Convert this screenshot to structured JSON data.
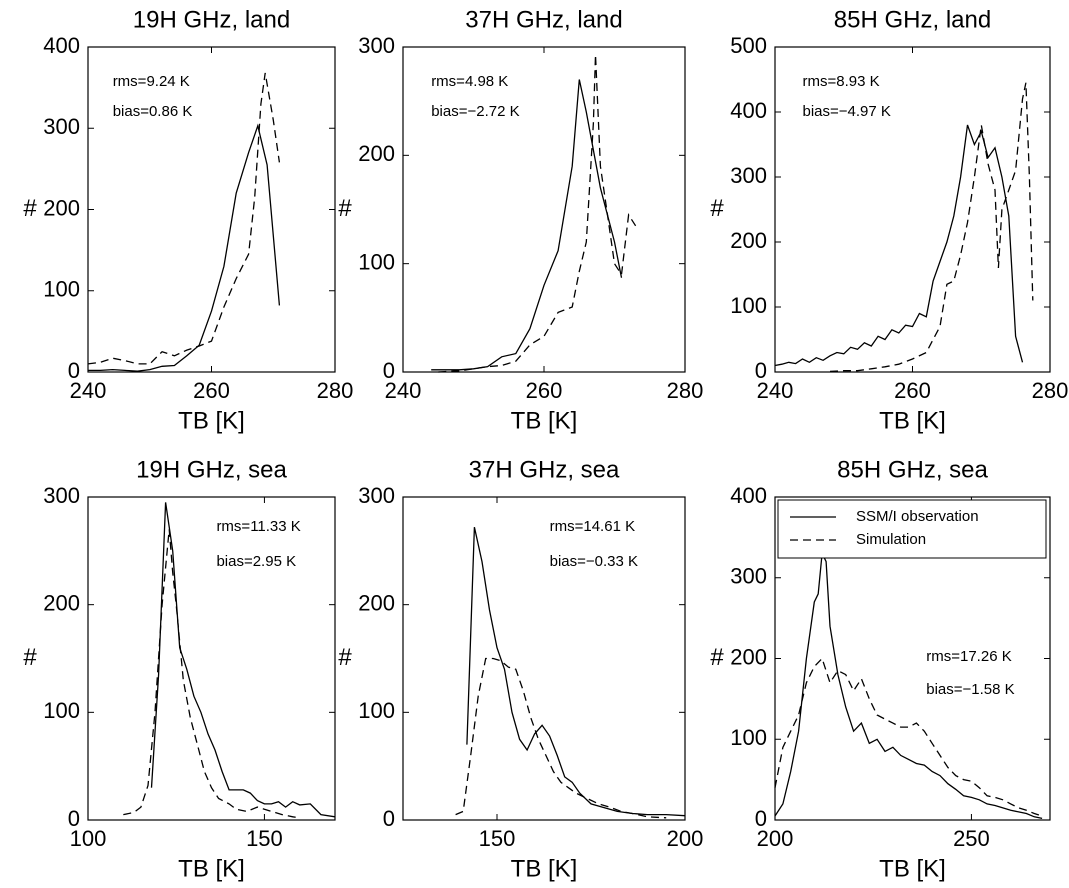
{
  "chart_data": [
    {
      "type": "line",
      "title": "19H GHz, land",
      "xlabel": "TB [K]",
      "ylabel": "#",
      "annotations": [
        "rms=9.24 K",
        "bias=0.86 K"
      ],
      "xlim": [
        240,
        280
      ],
      "xticks": [
        240,
        260,
        280
      ],
      "ylim": [
        0,
        400
      ],
      "yticks": [
        0,
        100,
        200,
        300,
        400
      ],
      "series": [
        {
          "color": "#000000",
          "style": "solid",
          "x": [
            240,
            242,
            244,
            246,
            248,
            250,
            252,
            254,
            256,
            258,
            260,
            262,
            264,
            266,
            267.5,
            269,
            271
          ],
          "values": [
            2,
            2,
            3,
            2,
            1,
            3,
            7,
            8,
            20,
            33,
            75,
            130,
            220,
            270,
            303,
            255,
            82
          ]
        },
        {
          "color": "#000000",
          "style": "dashed",
          "x": [
            240,
            242,
            244,
            246,
            248,
            250,
            252,
            254,
            256,
            258,
            260,
            262,
            264,
            266,
            267,
            268,
            268.7,
            270,
            271
          ],
          "values": [
            10,
            12,
            17,
            14,
            10,
            10,
            25,
            20,
            27,
            32,
            38,
            80,
            115,
            145,
            215,
            330,
            368,
            310,
            258
          ]
        }
      ]
    },
    {
      "type": "line",
      "title": "37H GHz, land",
      "xlabel": "TB [K]",
      "ylabel": "#",
      "annotations": [
        "rms=4.98 K",
        "bias=−2.72 K"
      ],
      "xlim": [
        240,
        280
      ],
      "xticks": [
        240,
        260,
        280
      ],
      "ylim": [
        0,
        300
      ],
      "yticks": [
        0,
        100,
        200,
        300
      ],
      "series": [
        {
          "color": "#000000",
          "style": "solid",
          "x": [
            244,
            246,
            248,
            250,
            252,
            254,
            256,
            258,
            260,
            262,
            264,
            265,
            266,
            268,
            270,
            271
          ],
          "values": [
            2,
            2,
            2,
            3,
            5,
            14,
            17,
            40,
            80,
            112,
            190,
            270,
            240,
            170,
            120,
            87
          ]
        },
        {
          "color": "#000000",
          "style": "dashed",
          "x": [
            245,
            248,
            250,
            252,
            254,
            256,
            258,
            260,
            262,
            264,
            265,
            266,
            267,
            267.3,
            268,
            269,
            270,
            271,
            272,
            273
          ],
          "values": [
            0,
            1,
            3,
            5,
            6,
            10,
            25,
            33,
            55,
            60,
            93,
            120,
            230,
            293,
            190,
            145,
            100,
            90,
            145,
            135
          ]
        }
      ]
    },
    {
      "type": "line",
      "title": "85H GHz, land",
      "xlabel": "TB [K]",
      "ylabel": "#",
      "annotations": [
        "rms=8.93 K",
        "bias=−4.97 K"
      ],
      "xlim": [
        240,
        280
      ],
      "xticks": [
        240,
        260,
        280
      ],
      "ylim": [
        0,
        500
      ],
      "yticks": [
        0,
        100,
        200,
        300,
        400,
        500
      ],
      "series": [
        {
          "color": "#000000",
          "style": "solid",
          "x": [
            240,
            241,
            242,
            243,
            244,
            245,
            246,
            247,
            248,
            249,
            250,
            251,
            252,
            253,
            254,
            255,
            256,
            257,
            258,
            259,
            260,
            261,
            262,
            263,
            264,
            265,
            266,
            267,
            268,
            269,
            270,
            271,
            272,
            273,
            274,
            275,
            276
          ],
          "values": [
            10,
            12,
            15,
            13,
            20,
            15,
            22,
            18,
            25,
            30,
            28,
            38,
            35,
            45,
            40,
            55,
            50,
            65,
            60,
            72,
            70,
            90,
            85,
            140,
            170,
            200,
            240,
            300,
            380,
            350,
            370,
            330,
            345,
            300,
            240,
            55,
            15
          ]
        },
        {
          "color": "#000000",
          "style": "dashed",
          "x": [
            248,
            250,
            252,
            254,
            256,
            258,
            260,
            262,
            263,
            264,
            265,
            266,
            267,
            268,
            269,
            270,
            271,
            272,
            272.5,
            273,
            274,
            275,
            276,
            276.5,
            277,
            277.5
          ],
          "values": [
            1,
            2,
            2,
            5,
            8,
            12,
            20,
            30,
            50,
            70,
            135,
            140,
            180,
            230,
            300,
            380,
            320,
            280,
            160,
            250,
            280,
            310,
            420,
            445,
            300,
            110
          ]
        }
      ]
    },
    {
      "type": "line",
      "title": "19H GHz, sea",
      "xlabel": "TB [K]",
      "ylabel": "#",
      "annotations": [
        "rms=11.33 K",
        "bias=2.95 K"
      ],
      "xlim": [
        100,
        170
      ],
      "xticks": [
        100,
        150
      ],
      "ylim": [
        0,
        300
      ],
      "yticks": [
        0,
        100,
        200,
        300
      ],
      "series": [
        {
          "color": "#000000",
          "style": "solid",
          "x": [
            118,
            120,
            122,
            124,
            126,
            128,
            130,
            132,
            134,
            136,
            138,
            140,
            144,
            146,
            148,
            150,
            152,
            154,
            156,
            158,
            160,
            163,
            166,
            170
          ],
          "values": [
            30,
            135,
            295,
            250,
            160,
            140,
            115,
            100,
            80,
            65,
            45,
            28,
            28,
            25,
            18,
            15,
            15,
            17,
            12,
            17,
            14,
            15,
            5,
            3
          ]
        },
        {
          "color": "#000000",
          "style": "dashed",
          "x": [
            110,
            113,
            115,
            117,
            119,
            121,
            123,
            124,
            125,
            127,
            129,
            131,
            133,
            135,
            137,
            140,
            142,
            145,
            148,
            150,
            152,
            155,
            158,
            160
          ],
          "values": [
            5,
            7,
            12,
            32,
            100,
            200,
            270,
            230,
            200,
            130,
            95,
            70,
            45,
            30,
            20,
            15,
            10,
            8,
            12,
            10,
            8,
            5,
            3,
            2
          ]
        }
      ]
    },
    {
      "type": "line",
      "title": "37H GHz, sea",
      "xlabel": "TB [K]",
      "ylabel": "#",
      "annotations": [
        "rms=14.61 K",
        "bias=−0.33 K"
      ],
      "xlim": [
        125,
        200
      ],
      "xticks": [
        150,
        200
      ],
      "ylim": [
        0,
        300
      ],
      "yticks": [
        0,
        100,
        200,
        300
      ],
      "series": [
        {
          "color": "#000000",
          "style": "solid",
          "x": [
            142,
            144,
            146,
            148,
            150,
            152,
            154,
            156,
            158,
            160,
            162,
            164,
            166,
            168,
            170,
            172,
            175,
            178,
            182,
            186,
            190,
            195,
            200
          ],
          "values": [
            70,
            272,
            240,
            195,
            160,
            140,
            100,
            75,
            65,
            80,
            88,
            78,
            60,
            40,
            35,
            25,
            15,
            12,
            8,
            6,
            5,
            5,
            4
          ]
        },
        {
          "color": "#000000",
          "style": "dashed",
          "x": [
            139,
            141,
            143,
            145,
            147,
            149,
            151,
            153,
            155,
            157,
            159,
            161,
            163,
            165,
            167,
            169,
            171,
            174,
            177,
            180,
            183,
            186,
            190,
            195
          ],
          "values": [
            5,
            8,
            60,
            115,
            150,
            150,
            148,
            142,
            140,
            120,
            95,
            75,
            60,
            45,
            35,
            30,
            25,
            20,
            15,
            12,
            8,
            6,
            3,
            2
          ]
        }
      ]
    },
    {
      "type": "line",
      "title": "85H GHz, sea",
      "xlabel": "TB [K]",
      "ylabel": "#",
      "annotations": [
        "rms=17.26 K",
        "bias=−1.58 K"
      ],
      "xlim": [
        200,
        270
      ],
      "xticks": [
        200,
        250
      ],
      "ylim": [
        0,
        400
      ],
      "yticks": [
        0,
        100,
        200,
        300,
        400
      ],
      "legend": "upper right",
      "series": [
        {
          "name": "SSM/I observation",
          "color": "#000000",
          "style": "solid",
          "x": [
            200,
            202,
            204,
            206,
            208,
            210,
            211,
            212,
            213,
            214,
            216,
            218,
            220,
            222,
            224,
            226,
            228,
            230,
            232,
            234,
            236,
            238,
            240,
            242,
            244,
            246,
            248,
            250,
            252,
            254,
            256,
            258,
            260,
            262,
            264,
            266,
            268
          ],
          "values": [
            5,
            20,
            60,
            110,
            200,
            270,
            280,
            330,
            320,
            240,
            180,
            140,
            110,
            120,
            95,
            100,
            85,
            90,
            80,
            75,
            70,
            68,
            60,
            55,
            45,
            38,
            30,
            28,
            25,
            20,
            18,
            15,
            12,
            10,
            8,
            4,
            2
          ]
        },
        {
          "name": "Simulation",
          "color": "#000000",
          "style": "dashed",
          "x": [
            200,
            202,
            204,
            206,
            208,
            210,
            212,
            214,
            216,
            218,
            220,
            222,
            224,
            226,
            228,
            230,
            232,
            234,
            236,
            238,
            240,
            242,
            244,
            246,
            248,
            250,
            252,
            254,
            256,
            258,
            260,
            262,
            264,
            266,
            268
          ],
          "values": [
            40,
            90,
            110,
            130,
            170,
            190,
            200,
            170,
            185,
            180,
            160,
            175,
            150,
            130,
            125,
            120,
            115,
            115,
            120,
            110,
            95,
            80,
            65,
            55,
            50,
            48,
            40,
            30,
            28,
            25,
            20,
            15,
            12,
            8,
            5
          ]
        }
      ]
    }
  ]
}
